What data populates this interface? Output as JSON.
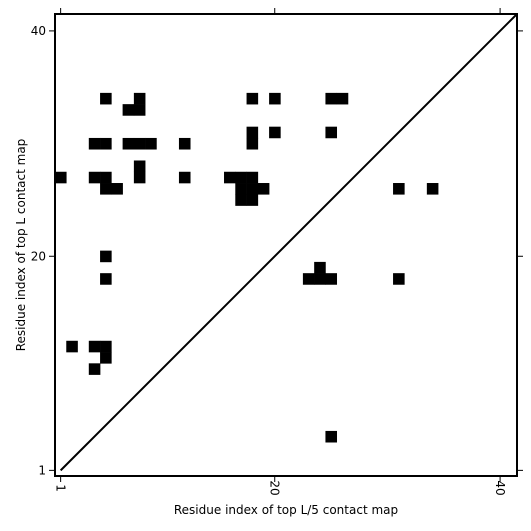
{
  "chart_data": {
    "type": "heatmap",
    "title": "",
    "xlabel": "Residue index of top L/5 contact map",
    "ylabel": "Residue index of top L contact map",
    "xlim": [
      0.5,
      41.5
    ],
    "ylim": [
      0.5,
      41.5
    ],
    "xticks": [
      {
        "value": 1,
        "label": "1"
      },
      {
        "value": 20,
        "label": "20"
      },
      {
        "value": 40,
        "label": "40"
      }
    ],
    "yticks": [
      {
        "value": 1,
        "label": "1"
      },
      {
        "value": 20,
        "label": "20"
      },
      {
        "value": 40,
        "label": "40"
      }
    ],
    "diagonal": true,
    "grid": false,
    "cell_color": "#000000",
    "background_color": "#ffffff",
    "contacts": [
      [
        5,
        34
      ],
      [
        8,
        34
      ],
      [
        18,
        34
      ],
      [
        20,
        34
      ],
      [
        25,
        34
      ],
      [
        26,
        34
      ],
      [
        7,
        33
      ],
      [
        8,
        33
      ],
      [
        18,
        31
      ],
      [
        20,
        31
      ],
      [
        25,
        31
      ],
      [
        4,
        30
      ],
      [
        5,
        30
      ],
      [
        7,
        30
      ],
      [
        8,
        30
      ],
      [
        9,
        30
      ],
      [
        12,
        30
      ],
      [
        18,
        30
      ],
      [
        8,
        28
      ],
      [
        1,
        27
      ],
      [
        4,
        27
      ],
      [
        5,
        27
      ],
      [
        8,
        27
      ],
      [
        12,
        27
      ],
      [
        16,
        27
      ],
      [
        17,
        27
      ],
      [
        18,
        27
      ],
      [
        5,
        26
      ],
      [
        6,
        26
      ],
      [
        17,
        26
      ],
      [
        18,
        26
      ],
      [
        19,
        26
      ],
      [
        31,
        26
      ],
      [
        34,
        26
      ],
      [
        17,
        25
      ],
      [
        18,
        25
      ],
      [
        5,
        20
      ],
      [
        24,
        19
      ],
      [
        5,
        18
      ],
      [
        23,
        18
      ],
      [
        24,
        18
      ],
      [
        25,
        18
      ],
      [
        31,
        18
      ],
      [
        2,
        12
      ],
      [
        4,
        12
      ],
      [
        5,
        12
      ],
      [
        5,
        11
      ],
      [
        4,
        10
      ],
      [
        25,
        4
      ]
    ]
  }
}
